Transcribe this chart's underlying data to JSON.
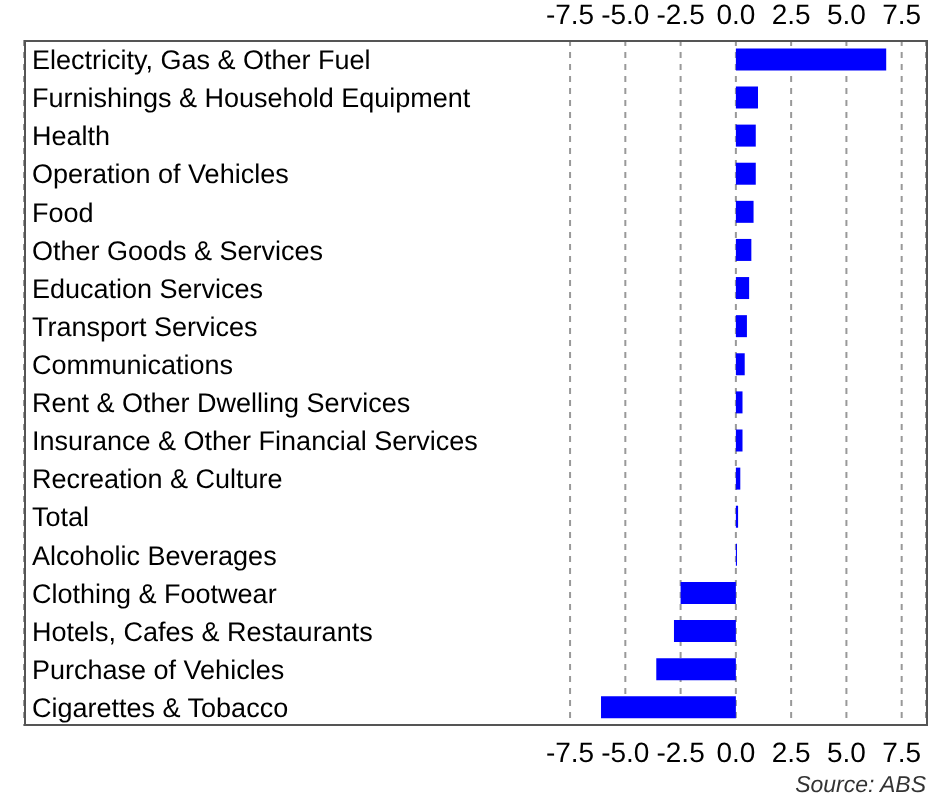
{
  "chart_data": {
    "type": "bar",
    "orientation": "horizontal",
    "categories": [
      "Electricity, Gas & Other Fuel",
      "Furnishings & Household Equipment",
      "Health",
      "Operation of Vehicles",
      "Food",
      "Other Goods & Services",
      "Education Services",
      "Transport Services",
      "Communications",
      "Rent & Other Dwelling Services",
      "Insurance & Other Financial Services",
      "Recreation & Culture",
      "Total",
      "Alcoholic Beverages",
      "Clothing & Footwear",
      "Hotels, Cafes & Restaurants",
      "Purchase of Vehicles",
      "Cigarettes & Tobacco"
    ],
    "values": [
      6.8,
      1.0,
      0.9,
      0.9,
      0.8,
      0.7,
      0.6,
      0.5,
      0.4,
      0.3,
      0.3,
      0.2,
      0.1,
      0.05,
      -2.5,
      -2.8,
      -3.6,
      -6.1
    ],
    "color": "#0000ff",
    "xlim": [
      -32.2,
      8.6
    ],
    "xticks": [
      -7.5,
      {
        "value": -5,
        "label": "-5.0"
      },
      -2.5,
      {
        "value": 0,
        "label": "0.0"
      },
      2.5,
      {
        "value": 5,
        "label": "5.0"
      },
      7.5
    ],
    "x2lim": [
      -32.2,
      8.6
    ],
    "x2ticks": [
      -7.5,
      {
        "value": -5,
        "label": "-5.0"
      },
      -2.5,
      {
        "value": 0,
        "label": "0.0"
      },
      2.5,
      {
        "value": 5,
        "label": "5.0"
      },
      7.5
    ],
    "grid": "x",
    "annotations": [
      "Source: ABS"
    ]
  }
}
